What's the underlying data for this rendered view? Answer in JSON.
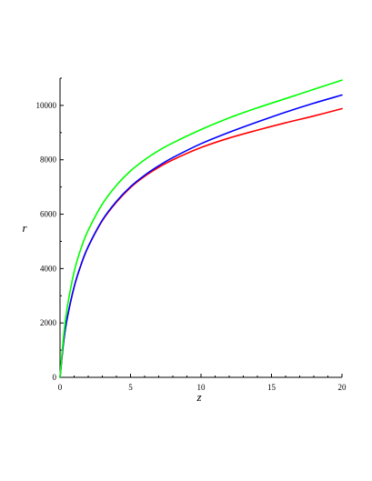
{
  "chart_data": {
    "type": "line",
    "title": "",
    "xlabel": "z",
    "ylabel": "r",
    "xlim": [
      0,
      20
    ],
    "ylim": [
      0,
      11000
    ],
    "x_ticks": [
      0,
      5,
      10,
      15,
      20
    ],
    "y_ticks": [
      0,
      2000,
      4000,
      6000,
      8000,
      10000
    ],
    "grid": false,
    "legend": "none",
    "x": [
      0,
      0.25,
      0.5,
      1,
      1.5,
      2,
      3,
      4,
      5,
      6,
      7,
      8,
      10,
      12,
      14,
      16,
      18,
      20
    ],
    "series": [
      {
        "color": "#ff0000",
        "values": [
          0,
          1300,
          2150,
          3320,
          4150,
          4800,
          5760,
          6440,
          6980,
          7390,
          7720,
          8000,
          8450,
          8800,
          9090,
          9360,
          9610,
          9880
        ]
      },
      {
        "color": "#0000ff",
        "values": [
          0,
          1300,
          2150,
          3330,
          4160,
          4810,
          5780,
          6470,
          7010,
          7430,
          7780,
          8080,
          8590,
          9010,
          9390,
          9750,
          10080,
          10380
        ]
      },
      {
        "color": "#00ff00",
        "values": [
          0,
          1500,
          2530,
          3880,
          4760,
          5410,
          6370,
          7060,
          7590,
          8000,
          8340,
          8620,
          9110,
          9540,
          9910,
          10250,
          10590,
          10930
        ]
      }
    ]
  }
}
